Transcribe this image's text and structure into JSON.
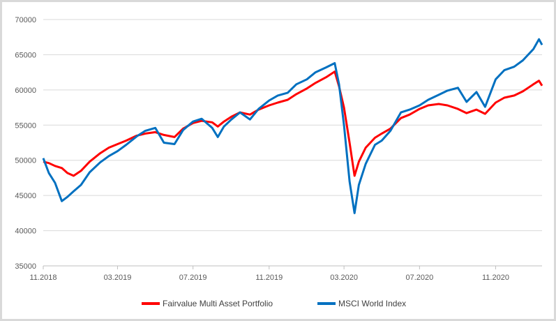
{
  "chart_data": {
    "type": "line",
    "title": "",
    "xlabel": "",
    "ylabel": "",
    "ylim": [
      35000,
      70000
    ],
    "yticks": [
      35000,
      40000,
      45000,
      50000,
      55000,
      60000,
      65000,
      70000
    ],
    "ytick_labels": [
      "35000",
      "40000",
      "45000",
      "50000",
      "55000",
      "60000",
      "65000",
      "70000"
    ],
    "xlim": [
      "2018-11-01",
      "2021-01-15"
    ],
    "xticks": [
      "2018-11-01",
      "2019-03-01",
      "2019-07-01",
      "2019-11-01",
      "2020-03-01",
      "2020-07-01",
      "2020-11-01"
    ],
    "xtick_labels": [
      "11.2018",
      "03.2019",
      "07.2019",
      "11.2019",
      "03.2020",
      "07.2020",
      "11.2020"
    ],
    "grid": true,
    "legend_position": "bottom",
    "series": [
      {
        "name": "Fairvalue Multi Asset Portfolio",
        "color": "#ff0000",
        "points": [
          [
            "2018-11-01",
            49800
          ],
          [
            "2018-11-10",
            49600
          ],
          [
            "2018-11-20",
            49200
          ],
          [
            "2018-12-01",
            48900
          ],
          [
            "2018-12-10",
            48200
          ],
          [
            "2018-12-20",
            47800
          ],
          [
            "2019-01-01",
            48500
          ],
          [
            "2019-01-15",
            49800
          ],
          [
            "2019-02-01",
            51000
          ],
          [
            "2019-02-15",
            51800
          ],
          [
            "2019-03-01",
            52300
          ],
          [
            "2019-03-15",
            52800
          ],
          [
            "2019-04-01",
            53500
          ],
          [
            "2019-04-15",
            53800
          ],
          [
            "2019-05-01",
            54000
          ],
          [
            "2019-05-15",
            53600
          ],
          [
            "2019-06-01",
            53300
          ],
          [
            "2019-06-15",
            54500
          ],
          [
            "2019-07-01",
            55300
          ],
          [
            "2019-07-15",
            55600
          ],
          [
            "2019-08-01",
            55400
          ],
          [
            "2019-08-10",
            54800
          ],
          [
            "2019-08-20",
            55500
          ],
          [
            "2019-09-01",
            56200
          ],
          [
            "2019-09-15",
            56800
          ],
          [
            "2019-10-01",
            56500
          ],
          [
            "2019-10-15",
            57200
          ],
          [
            "2019-11-01",
            57800
          ],
          [
            "2019-11-15",
            58200
          ],
          [
            "2019-12-01",
            58600
          ],
          [
            "2019-12-15",
            59400
          ],
          [
            "2020-01-01",
            60200
          ],
          [
            "2020-01-15",
            61000
          ],
          [
            "2020-02-01",
            61800
          ],
          [
            "2020-02-15",
            62600
          ],
          [
            "2020-02-22",
            60500
          ],
          [
            "2020-03-01",
            57500
          ],
          [
            "2020-03-10",
            52500
          ],
          [
            "2020-03-18",
            47800
          ],
          [
            "2020-03-25",
            49800
          ],
          [
            "2020-04-05",
            51800
          ],
          [
            "2020-04-20",
            53200
          ],
          [
            "2020-05-01",
            53800
          ],
          [
            "2020-05-15",
            54500
          ],
          [
            "2020-06-01",
            56000
          ],
          [
            "2020-06-15",
            56500
          ],
          [
            "2020-07-01",
            57300
          ],
          [
            "2020-07-15",
            57800
          ],
          [
            "2020-08-01",
            58000
          ],
          [
            "2020-08-15",
            57800
          ],
          [
            "2020-09-01",
            57300
          ],
          [
            "2020-09-15",
            56700
          ],
          [
            "2020-10-01",
            57200
          ],
          [
            "2020-10-15",
            56600
          ],
          [
            "2020-11-01",
            58200
          ],
          [
            "2020-11-15",
            58900
          ],
          [
            "2020-12-01",
            59200
          ],
          [
            "2020-12-15",
            59800
          ],
          [
            "2021-01-01",
            60800
          ],
          [
            "2021-01-10",
            61300
          ],
          [
            "2021-01-15",
            60600
          ]
        ]
      },
      {
        "name": "MSCI World Index",
        "color": "#0070c0",
        "points": [
          [
            "2018-11-01",
            50300
          ],
          [
            "2018-11-10",
            48200
          ],
          [
            "2018-11-20",
            46800
          ],
          [
            "2018-12-01",
            44200
          ],
          [
            "2018-12-10",
            44800
          ],
          [
            "2018-12-20",
            45600
          ],
          [
            "2019-01-01",
            46500
          ],
          [
            "2019-01-15",
            48300
          ],
          [
            "2019-02-01",
            49700
          ],
          [
            "2019-02-15",
            50600
          ],
          [
            "2019-03-01",
            51300
          ],
          [
            "2019-03-15",
            52200
          ],
          [
            "2019-04-01",
            53400
          ],
          [
            "2019-04-15",
            54200
          ],
          [
            "2019-05-01",
            54600
          ],
          [
            "2019-05-15",
            52500
          ],
          [
            "2019-06-01",
            52300
          ],
          [
            "2019-06-15",
            54300
          ],
          [
            "2019-07-01",
            55500
          ],
          [
            "2019-07-15",
            55900
          ],
          [
            "2019-08-01",
            54600
          ],
          [
            "2019-08-10",
            53300
          ],
          [
            "2019-08-20",
            54800
          ],
          [
            "2019-09-01",
            55800
          ],
          [
            "2019-09-15",
            56800
          ],
          [
            "2019-10-01",
            55800
          ],
          [
            "2019-10-15",
            57300
          ],
          [
            "2019-11-01",
            58500
          ],
          [
            "2019-11-15",
            59200
          ],
          [
            "2019-12-01",
            59600
          ],
          [
            "2019-12-15",
            60800
          ],
          [
            "2020-01-01",
            61500
          ],
          [
            "2020-01-15",
            62500
          ],
          [
            "2020-02-01",
            63200
          ],
          [
            "2020-02-15",
            63800
          ],
          [
            "2020-02-22",
            60800
          ],
          [
            "2020-03-01",
            55000
          ],
          [
            "2020-03-10",
            47000
          ],
          [
            "2020-03-18",
            42500
          ],
          [
            "2020-03-25",
            46500
          ],
          [
            "2020-04-05",
            49500
          ],
          [
            "2020-04-20",
            52200
          ],
          [
            "2020-05-01",
            52800
          ],
          [
            "2020-05-15",
            54200
          ],
          [
            "2020-06-01",
            56800
          ],
          [
            "2020-06-15",
            57200
          ],
          [
            "2020-07-01",
            57800
          ],
          [
            "2020-07-15",
            58600
          ],
          [
            "2020-08-01",
            59300
          ],
          [
            "2020-08-15",
            59900
          ],
          [
            "2020-09-01",
            60300
          ],
          [
            "2020-09-15",
            58300
          ],
          [
            "2020-10-01",
            59700
          ],
          [
            "2020-10-15",
            57600
          ],
          [
            "2020-11-01",
            61500
          ],
          [
            "2020-11-15",
            62800
          ],
          [
            "2020-12-01",
            63300
          ],
          [
            "2020-12-15",
            64200
          ],
          [
            "2021-01-01",
            65800
          ],
          [
            "2021-01-10",
            67200
          ],
          [
            "2021-01-15",
            66400
          ]
        ]
      }
    ]
  }
}
